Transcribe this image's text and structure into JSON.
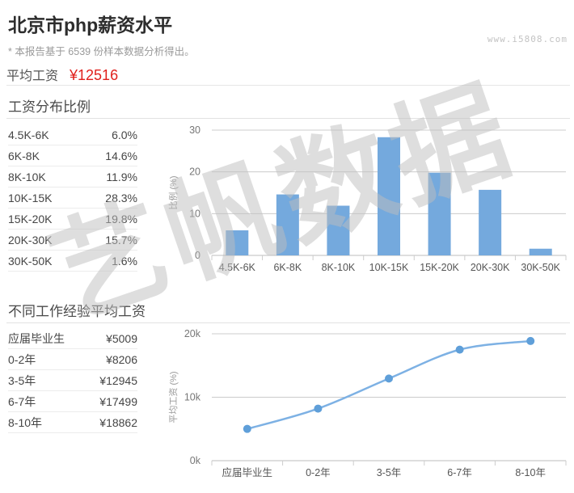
{
  "header": {
    "title": "北京市php薪资水平",
    "subtitle": "* 本报告基于 6539 份样本数据分析得出。",
    "site": "www.i5808.com"
  },
  "average": {
    "label": "平均工资",
    "value": "¥12516"
  },
  "sections": [
    {
      "title": "工资分布比例",
      "table": {
        "rows": [
          {
            "label": "4.5K-6K",
            "value": "6.0%"
          },
          {
            "label": "6K-8K",
            "value": "14.6%"
          },
          {
            "label": "8K-10K",
            "value": "11.9%"
          },
          {
            "label": "10K-15K",
            "value": "28.3%"
          },
          {
            "label": "15K-20K",
            "value": "19.8%"
          },
          {
            "label": "20K-30K",
            "value": "15.7%"
          },
          {
            "label": "30K-50K",
            "value": "1.6%"
          }
        ]
      }
    },
    {
      "title": "不同工作经验平均工资",
      "table": {
        "rows": [
          {
            "label": "应届毕业生",
            "value": "¥5009"
          },
          {
            "label": "0-2年",
            "value": "¥8206"
          },
          {
            "label": "3-5年",
            "value": "¥12945"
          },
          {
            "label": "6-7年",
            "value": "¥17499"
          },
          {
            "label": "8-10年",
            "value": "¥18862"
          }
        ]
      }
    }
  ],
  "chart_data": [
    {
      "type": "bar",
      "title": "工资分布比例",
      "categories": [
        "4.5K-6K",
        "6K-8K",
        "8K-10K",
        "10K-15K",
        "15K-20K",
        "20K-30K",
        "30K-50K"
      ],
      "values": [
        6.0,
        14.6,
        11.9,
        28.3,
        19.8,
        15.7,
        1.6
      ],
      "xlabel": "",
      "ylabel": "比例 (%)",
      "ylim": [
        0,
        30
      ],
      "yticks": [
        0,
        10,
        20,
        30
      ],
      "ytick_labels": [
        "0",
        "10",
        "20",
        "30"
      ],
      "grid": true,
      "legend": "none",
      "bar_color": "#74a9dd"
    },
    {
      "type": "line",
      "title": "不同工作经验平均工资",
      "categories": [
        "应届毕业生",
        "0-2年",
        "3-5年",
        "6-7年",
        "8-10年"
      ],
      "values": [
        5009,
        8206,
        12945,
        17499,
        18862
      ],
      "xlabel": "",
      "ylabel": "平均工资 (%)",
      "ylim": [
        0,
        20000
      ],
      "yticks": [
        0,
        10000,
        20000
      ],
      "ytick_labels": [
        "0k",
        "10k",
        "20k"
      ],
      "grid": true,
      "legend": "none",
      "smooth": true,
      "line_color": "#7db1e4",
      "marker_color": "#5f9fd9"
    }
  ],
  "watermark": {
    "text": "艺帆数据"
  },
  "colors": {
    "accent_red": "#e0201c",
    "bar_blue": "#74a9dd",
    "line_blue": "#7db1e4",
    "grid_gray": "#cccccc",
    "text_dark": "#2d2d2d",
    "text_gray": "#9a9a9a"
  }
}
